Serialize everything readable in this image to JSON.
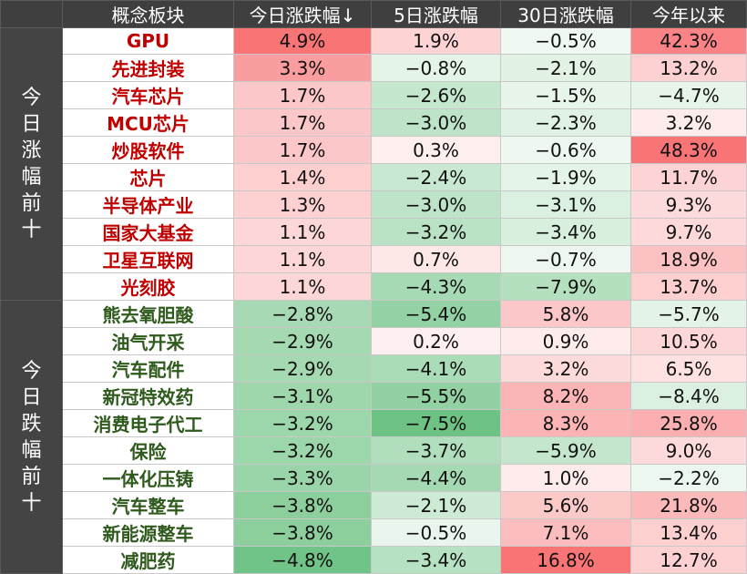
{
  "header": [
    "概念板块",
    "今日涨跌幅↓",
    "5日涨跌幅",
    "30日涨跌幅",
    "今年以来"
  ],
  "colors": {
    "header_bg": "#3f3f3f",
    "gain_text": "#c00000",
    "loss_text": "#2e5a1c",
    "positive_base": "#f8696b",
    "negative_base": "#63be7b"
  },
  "groups": [
    {
      "label": "今日涨幅前十",
      "direction": "up",
      "rows": [
        {
          "name": "GPU",
          "d1": "4.9%",
          "d5": "1.9%",
          "d30": "−0.5%",
          "ytd": "42.3%"
        },
        {
          "name": "先进封装",
          "d1": "3.3%",
          "d5": "−0.8%",
          "d30": "−2.1%",
          "ytd": "13.2%"
        },
        {
          "name": "汽车芯片",
          "d1": "1.7%",
          "d5": "−2.6%",
          "d30": "−1.5%",
          "ytd": "−4.7%"
        },
        {
          "name": "MCU芯片",
          "d1": "1.7%",
          "d5": "−3.0%",
          "d30": "−2.3%",
          "ytd": "3.2%"
        },
        {
          "name": "炒股软件",
          "d1": "1.7%",
          "d5": "0.3%",
          "d30": "−0.6%",
          "ytd": "48.3%"
        },
        {
          "name": "芯片",
          "d1": "1.4%",
          "d5": "−2.4%",
          "d30": "−1.9%",
          "ytd": "11.7%"
        },
        {
          "name": "半导体产业",
          "d1": "1.3%",
          "d5": "−3.0%",
          "d30": "−3.1%",
          "ytd": "9.3%"
        },
        {
          "name": "国家大基金",
          "d1": "1.1%",
          "d5": "−3.2%",
          "d30": "−3.4%",
          "ytd": "9.7%"
        },
        {
          "name": "卫星互联网",
          "d1": "1.1%",
          "d5": "0.7%",
          "d30": "−0.7%",
          "ytd": "18.9%"
        },
        {
          "name": "光刻胶",
          "d1": "1.1%",
          "d5": "−4.3%",
          "d30": "−7.9%",
          "ytd": "13.7%"
        }
      ]
    },
    {
      "label": "今日跌幅前十",
      "direction": "down",
      "rows": [
        {
          "name": "熊去氧胆酸",
          "d1": "−2.8%",
          "d5": "−5.4%",
          "d30": "5.8%",
          "ytd": "−5.7%"
        },
        {
          "name": "油气开采",
          "d1": "−2.9%",
          "d5": "0.2%",
          "d30": "0.9%",
          "ytd": "10.5%"
        },
        {
          "name": "汽车配件",
          "d1": "−2.9%",
          "d5": "−4.1%",
          "d30": "3.2%",
          "ytd": "6.5%"
        },
        {
          "name": "新冠特效药",
          "d1": "−3.1%",
          "d5": "−5.5%",
          "d30": "8.2%",
          "ytd": "−8.4%"
        },
        {
          "name": "消费电子代工",
          "d1": "−3.2%",
          "d5": "−7.5%",
          "d30": "8.3%",
          "ytd": "25.8%"
        },
        {
          "name": "保险",
          "d1": "−3.2%",
          "d5": "−3.7%",
          "d30": "−5.9%",
          "ytd": "9.0%"
        },
        {
          "name": "一体化压铸",
          "d1": "−3.3%",
          "d5": "−4.4%",
          "d30": "1.0%",
          "ytd": "−2.2%"
        },
        {
          "name": "汽车整车",
          "d1": "−3.8%",
          "d5": "−2.1%",
          "d30": "5.6%",
          "ytd": "21.8%"
        },
        {
          "name": "新能源整车",
          "d1": "−3.8%",
          "d5": "−0.5%",
          "d30": "7.1%",
          "ytd": "13.4%"
        },
        {
          "name": "减肥药",
          "d1": "−4.8%",
          "d5": "−3.4%",
          "d30": "16.8%",
          "ytd": "12.7%"
        }
      ]
    }
  ]
}
